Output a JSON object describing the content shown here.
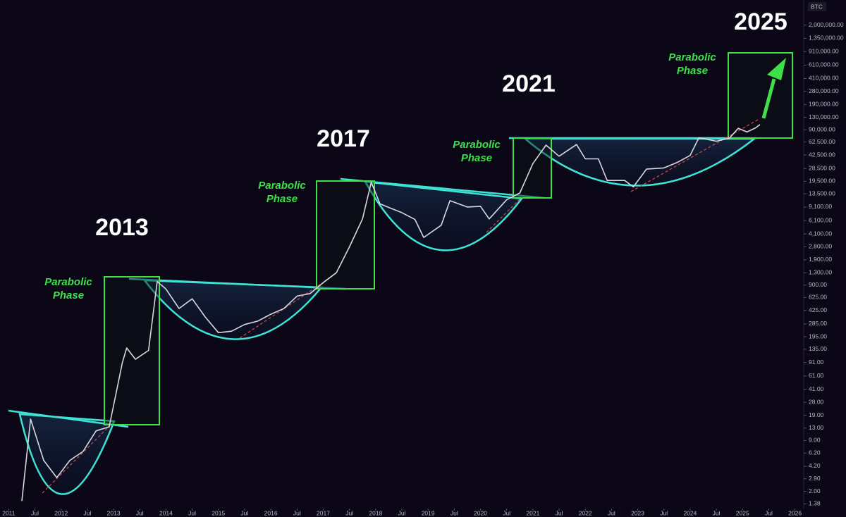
{
  "chart_data": {
    "type": "line",
    "symbol": "BTC",
    "annotations": [
      "2013",
      "2017",
      "2021",
      "2025"
    ],
    "phase_labels": [
      [
        "Parabolic",
        "Phase"
      ],
      [
        "Parabolic",
        "Phase"
      ],
      [
        "Parabolic",
        "Phase"
      ],
      [
        "Parabolic",
        "Phase"
      ]
    ],
    "y_log_scale": true,
    "grid": false,
    "color": "#d8d8e0",
    "x": [
      "2011-04",
      "2011-06",
      "2011-09",
      "2011-12",
      "2012-03",
      "2012-06",
      "2012-09",
      "2012-12",
      "2013-03",
      "2013-04",
      "2013-06",
      "2013-09",
      "2013-11",
      "2014-01",
      "2014-04",
      "2014-07",
      "2014-10",
      "2015-01",
      "2015-04",
      "2015-07",
      "2015-10",
      "2016-01",
      "2016-04",
      "2016-07",
      "2016-10",
      "2017-01",
      "2017-04",
      "2017-07",
      "2017-10",
      "2017-12",
      "2018-02",
      "2018-04",
      "2018-07",
      "2018-10",
      "2018-12",
      "2019-04",
      "2019-06",
      "2019-10",
      "2020-01",
      "2020-03",
      "2020-07",
      "2020-10",
      "2021-01",
      "2021-04",
      "2021-07",
      "2021-11",
      "2022-01",
      "2022-04",
      "2022-06",
      "2022-10",
      "2022-12",
      "2023-03",
      "2023-07",
      "2023-10",
      "2024-01",
      "2024-03",
      "2024-07",
      "2024-10",
      "2024-12",
      "2025-02",
      "2025-04",
      "2025-05"
    ],
    "values": [
      1.5,
      17,
      5,
      3,
      5,
      6.5,
      12,
      13.5,
      90,
      140,
      100,
      130,
      1000,
      800,
      450,
      600,
      350,
      220,
      230,
      280,
      310,
      380,
      450,
      650,
      700,
      970,
      1300,
      2800,
      6400,
      19000,
      10000,
      9000,
      7700,
      6300,
      3700,
      5300,
      11000,
      9100,
      9300,
      6400,
      11300,
      13800,
      33000,
      57000,
      41000,
      58000,
      38000,
      38000,
      20000,
      20000,
      16500,
      28000,
      29000,
      34000,
      42000,
      71000,
      64000,
      70000,
      94000,
      84000,
      95000,
      105000
    ],
    "xlim": [
      "2010-11",
      "2026-03"
    ],
    "xticks": [
      {
        "value": "2011-01",
        "label": "2011"
      },
      {
        "value": "2011-07",
        "label": "Jul"
      },
      {
        "value": "2012-01",
        "label": "2012"
      },
      {
        "value": "2012-07",
        "label": "Jul"
      },
      {
        "value": "2013-01",
        "label": "2013"
      },
      {
        "value": "2013-07",
        "label": "Jul"
      },
      {
        "value": "2014-01",
        "label": "2014"
      },
      {
        "value": "2014-07",
        "label": "Jul"
      },
      {
        "value": "2015-01",
        "label": "2015"
      },
      {
        "value": "2015-07",
        "label": "Jul"
      },
      {
        "value": "2016-01",
        "label": "2016"
      },
      {
        "value": "2016-07",
        "label": "Jul"
      },
      {
        "value": "2017-01",
        "label": "2017"
      },
      {
        "value": "2017-07",
        "label": "Jul"
      },
      {
        "value": "2018-01",
        "label": "2018"
      },
      {
        "value": "2018-07",
        "label": "Jul"
      },
      {
        "value": "2019-01",
        "label": "2019"
      },
      {
        "value": "2019-07",
        "label": "Jul"
      },
      {
        "value": "2020-01",
        "label": "2020"
      },
      {
        "value": "2020-07",
        "label": "Jul"
      },
      {
        "value": "2021-01",
        "label": "2021"
      },
      {
        "value": "2021-07",
        "label": "Jul"
      },
      {
        "value": "2022-01",
        "label": "2022"
      },
      {
        "value": "2022-07",
        "label": "Jul"
      },
      {
        "value": "2023-01",
        "label": "2023"
      },
      {
        "value": "2023-07",
        "label": "Jul"
      },
      {
        "value": "2024-01",
        "label": "2024"
      },
      {
        "value": "2024-07",
        "label": "Jul"
      },
      {
        "value": "2025-01",
        "label": "2025"
      },
      {
        "value": "2025-07",
        "label": "Jul"
      },
      {
        "value": "2026-01",
        "label": "2026"
      }
    ],
    "ylim": [
      1.2,
      4200000
    ],
    "yticks": [
      {
        "value": 2000000,
        "label": "2,000,000.00"
      },
      {
        "value": 1350000,
        "label": "1,350,000.00"
      },
      {
        "value": 910000,
        "label": "910,000.00"
      },
      {
        "value": 610000,
        "label": "610,000.00"
      },
      {
        "value": 410000,
        "label": "410,000.00"
      },
      {
        "value": 280000,
        "label": "280,000.00"
      },
      {
        "value": 190000,
        "label": "190,000.00"
      },
      {
        "value": 130000,
        "label": "130,000.00"
      },
      {
        "value": 90000,
        "label": "90,000.00"
      },
      {
        "value": 62500,
        "label": "62,500.00"
      },
      {
        "value": 42500,
        "label": "42,500.00"
      },
      {
        "value": 28500,
        "label": "28,500.00"
      },
      {
        "value": 19500,
        "label": "19,500.00"
      },
      {
        "value": 13500,
        "label": "13,500.00"
      },
      {
        "value": 9100,
        "label": "9,100.00"
      },
      {
        "value": 6100,
        "label": "6,100.00"
      },
      {
        "value": 4100,
        "label": "4,100.00"
      },
      {
        "value": 2800,
        "label": "2,800.00"
      },
      {
        "value": 1900,
        "label": "1,900.00"
      },
      {
        "value": 1300,
        "label": "1,300.00"
      },
      {
        "value": 900,
        "label": "900.00"
      },
      {
        "value": 625,
        "label": "625.00"
      },
      {
        "value": 425,
        "label": "425.00"
      },
      {
        "value": 285,
        "label": "285.00"
      },
      {
        "value": 195,
        "label": "195.00"
      },
      {
        "value": 135,
        "label": "135.00"
      },
      {
        "value": 91,
        "label": "91.00"
      },
      {
        "value": 61,
        "label": "61.00"
      },
      {
        "value": 41,
        "label": "41.00"
      },
      {
        "value": 28,
        "label": "28.00"
      },
      {
        "value": 19,
        "label": "19.00"
      },
      {
        "value": 13,
        "label": "13.00"
      },
      {
        "value": 9,
        "label": "9.00"
      },
      {
        "value": 6.2,
        "label": "6.20"
      },
      {
        "value": 4.2,
        "label": "4.20"
      },
      {
        "value": 2.9,
        "label": "2.90"
      },
      {
        "value": 2,
        "label": "2.00"
      },
      {
        "value": 1.38,
        "label": "1.38"
      }
    ]
  }
}
